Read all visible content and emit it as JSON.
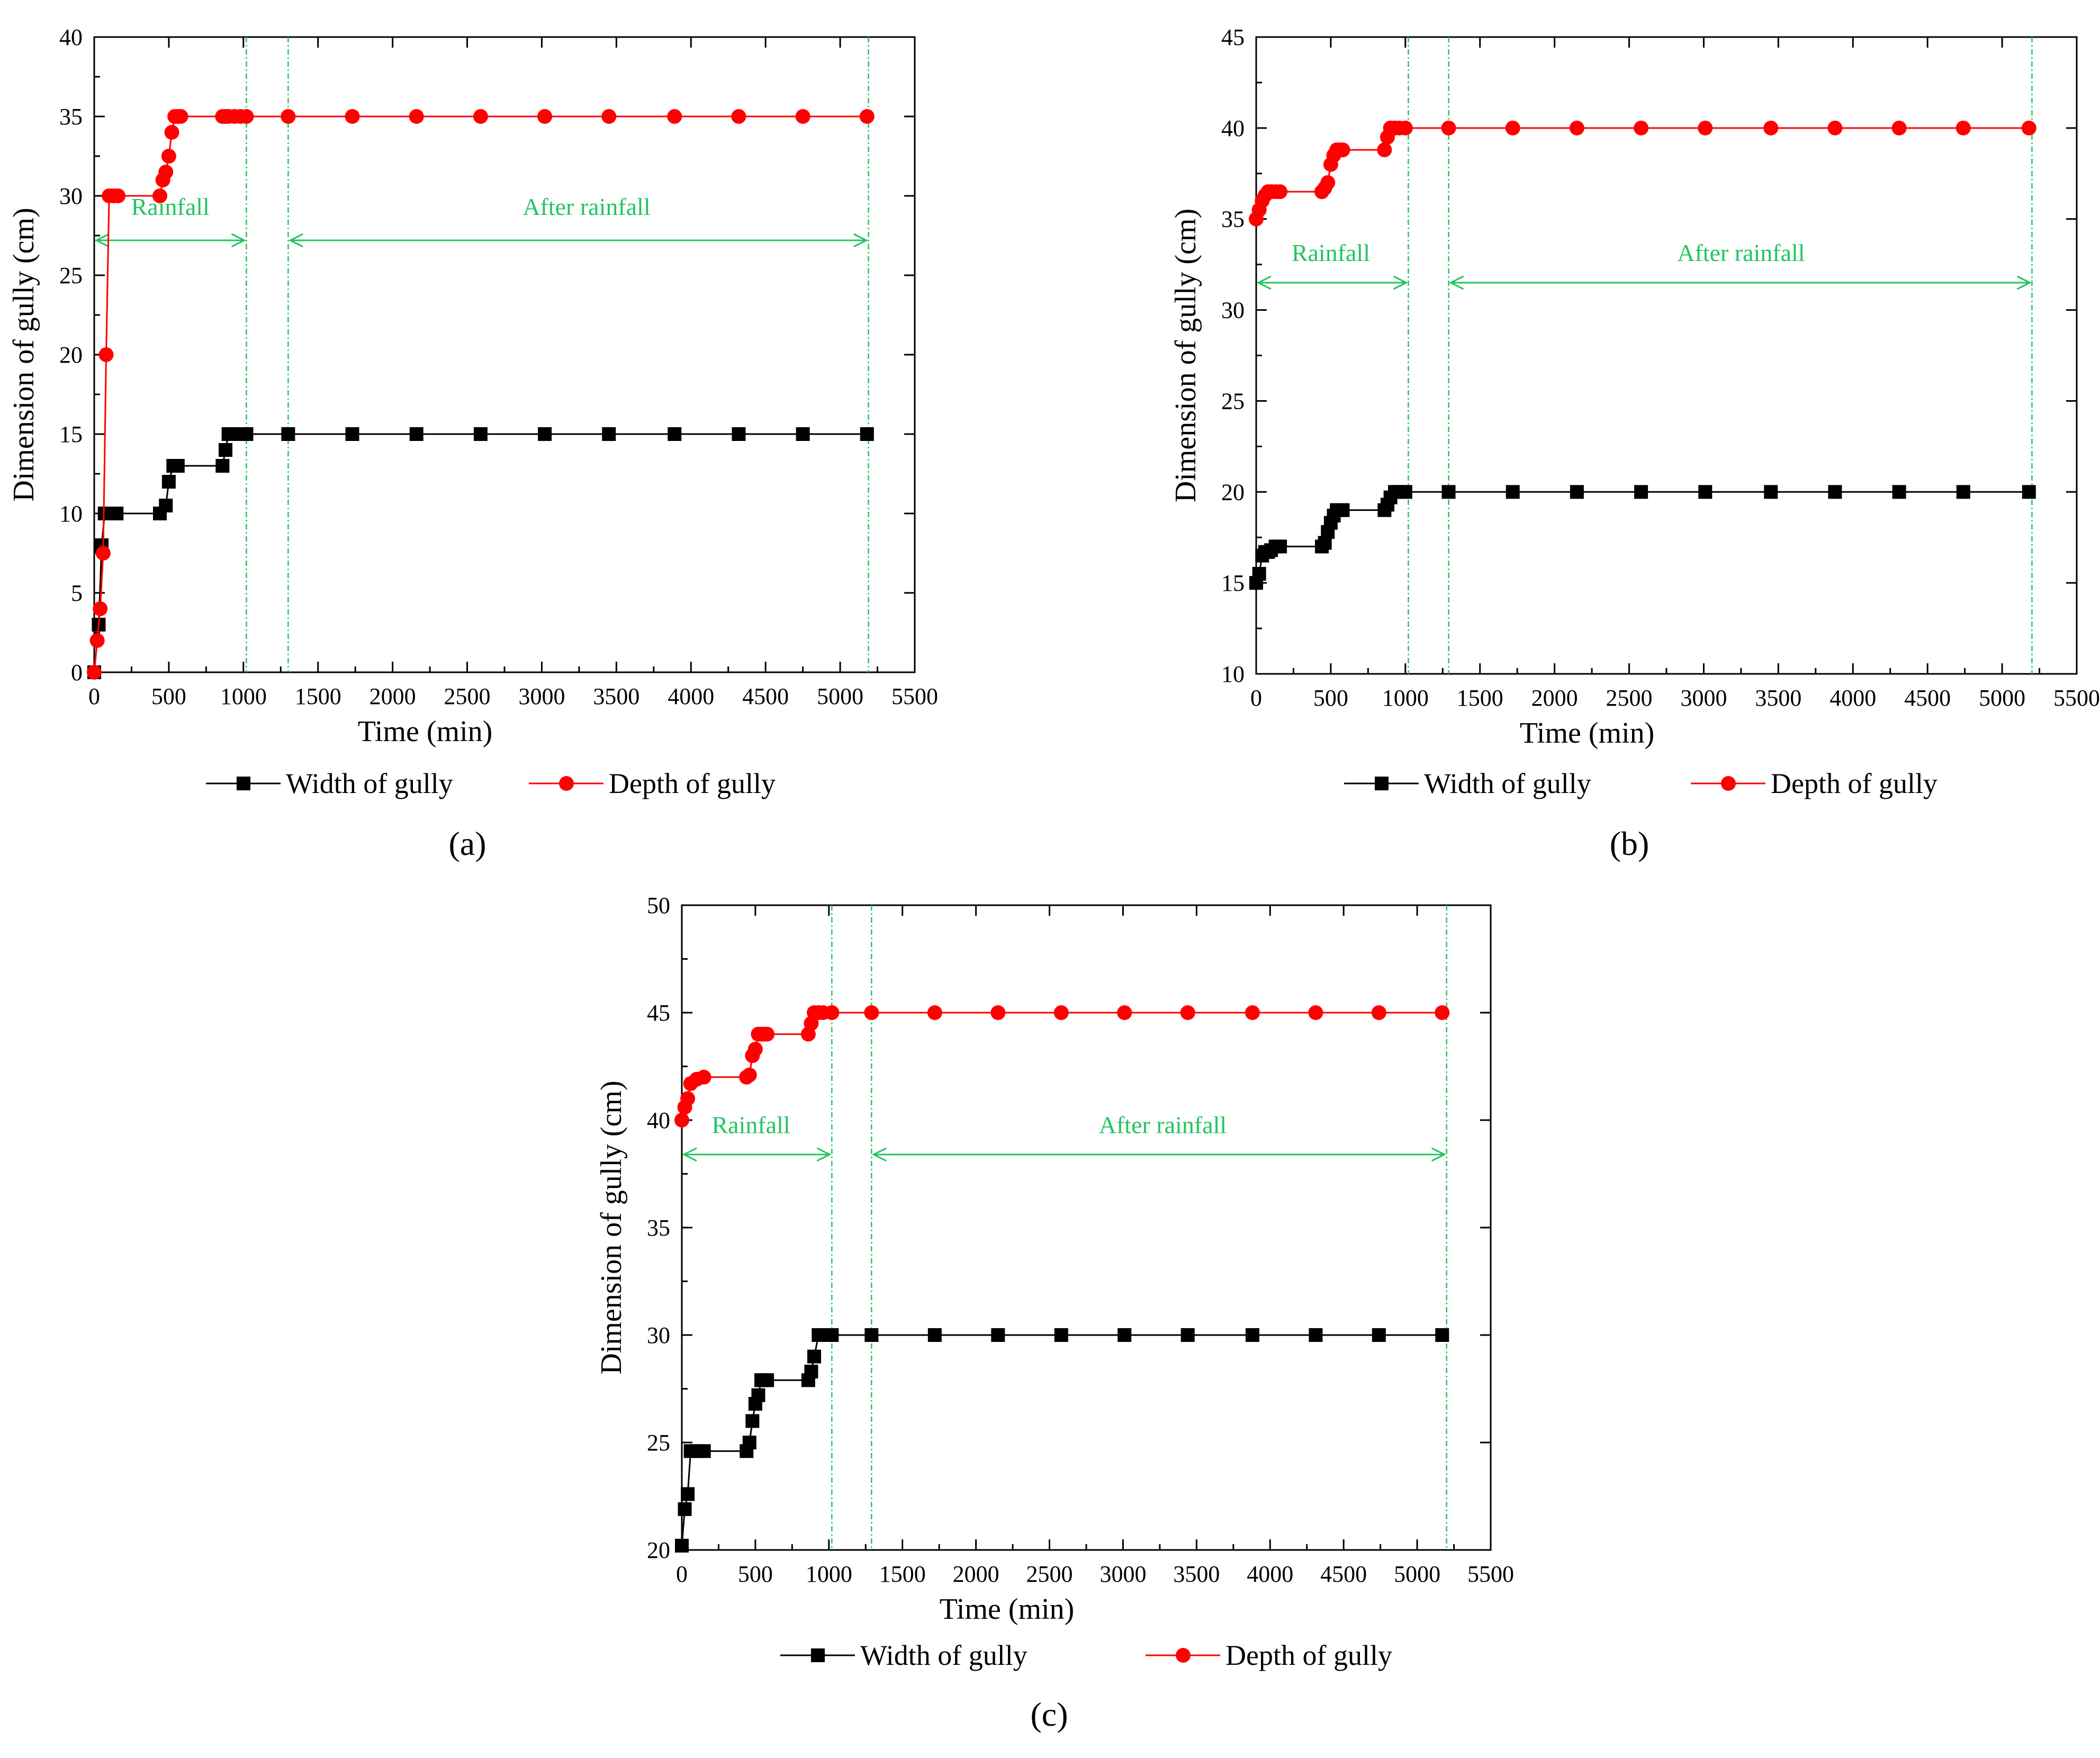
{
  "colors": {
    "width_series": "#000000",
    "depth_series": "#ff0000",
    "annotation": "#22c55e",
    "axis": "#000000"
  },
  "chart_data": [
    {
      "type": "line",
      "panel_label": "(a)",
      "xlabel": "Time (min)",
      "ylabel": "Dimension of gully (cm)",
      "xlim": [
        0,
        5500
      ],
      "ylim": [
        0,
        40
      ],
      "xticks": [
        0,
        500,
        1000,
        1500,
        2000,
        2500,
        3000,
        3500,
        4000,
        4500,
        5000,
        5500
      ],
      "yticks": [
        0,
        5,
        10,
        15,
        20,
        25,
        30,
        35,
        40
      ],
      "grid": false,
      "legend_position": "below",
      "annotations": {
        "vlines": [
          1020,
          1300,
          5190
        ],
        "spans": [
          {
            "label": "Rainfall",
            "from": 0,
            "to": 1020,
            "y": 27.2,
            "label_y": 28.8,
            "label_x": 510
          },
          {
            "label": "After rainfall",
            "from": 1300,
            "to": 5190,
            "y": 27.2,
            "label_y": 28.8,
            "label_x": 3300
          }
        ]
      },
      "series": [
        {
          "name": "Width of gully",
          "marker": "square",
          "x": [
            0,
            30,
            50,
            70,
            100,
            150,
            440,
            480,
            500,
            530,
            560,
            860,
            880,
            900,
            960,
            1020,
            1300,
            1730,
            2160,
            2590,
            3020,
            3450,
            3890,
            4320,
            4750,
            5180
          ],
          "y": [
            0,
            3,
            8,
            10,
            10,
            10,
            10,
            10.5,
            12,
            13,
            13,
            13,
            14,
            15,
            15,
            15,
            15,
            15,
            15,
            15,
            15,
            15,
            15,
            15,
            15,
            15
          ]
        },
        {
          "name": "Depth of gully",
          "marker": "circle",
          "x": [
            0,
            20,
            40,
            60,
            80,
            100,
            130,
            160,
            440,
            460,
            480,
            500,
            520,
            540,
            560,
            580,
            860,
            880,
            900,
            940,
            980,
            1020,
            1300,
            1730,
            2160,
            2590,
            3020,
            3450,
            3890,
            4320,
            4750,
            5180
          ],
          "y": [
            0,
            2,
            4,
            7.5,
            20,
            30,
            30,
            30,
            30,
            31,
            31.5,
            32.5,
            34,
            35,
            35,
            35,
            35,
            35,
            35,
            35,
            35,
            35,
            35,
            35,
            35,
            35,
            35,
            35,
            35,
            35,
            35,
            35
          ]
        }
      ]
    },
    {
      "type": "line",
      "panel_label": "(b)",
      "xlabel": "Time (min)",
      "ylabel": "Dimension of gully (cm)",
      "xlim": [
        0,
        5500
      ],
      "ylim": [
        10,
        45
      ],
      "xticks": [
        0,
        500,
        1000,
        1500,
        2000,
        2500,
        3000,
        3500,
        4000,
        4500,
        5000,
        5500
      ],
      "yticks": [
        10,
        15,
        20,
        25,
        30,
        35,
        40,
        45
      ],
      "grid": false,
      "legend_position": "below",
      "annotations": {
        "vlines": [
          1020,
          1290,
          5200
        ],
        "spans": [
          {
            "label": "Rainfall",
            "from": 0,
            "to": 1020,
            "y": 31.5,
            "label_y": 32.7,
            "label_x": 500
          },
          {
            "label": "After rainfall",
            "from": 1290,
            "to": 5200,
            "y": 31.5,
            "label_y": 32.7,
            "label_x": 3250
          }
        ]
      },
      "series": [
        {
          "name": "Width of gully",
          "marker": "square",
          "x": [
            0,
            20,
            40,
            60,
            80,
            100,
            130,
            160,
            440,
            460,
            480,
            500,
            520,
            540,
            560,
            580,
            860,
            880,
            900,
            930,
            960,
            1000,
            1290,
            1720,
            2150,
            2580,
            3010,
            3450,
            3880,
            4310,
            4740,
            5180
          ],
          "y": [
            15,
            15.5,
            16.5,
            16.7,
            16.7,
            16.8,
            17,
            17,
            17,
            17.2,
            17.8,
            18.3,
            18.7,
            19,
            19,
            19,
            19,
            19.3,
            19.7,
            20,
            20,
            20,
            20,
            20,
            20,
            20,
            20,
            20,
            20,
            20,
            20,
            20
          ]
        },
        {
          "name": "Depth of gully",
          "marker": "circle",
          "x": [
            0,
            20,
            40,
            60,
            80,
            100,
            130,
            160,
            440,
            460,
            480,
            500,
            520,
            540,
            560,
            580,
            860,
            880,
            900,
            930,
            960,
            1000,
            1290,
            1720,
            2150,
            2580,
            3010,
            3450,
            3880,
            4310,
            4740,
            5180
          ],
          "y": [
            35,
            35.5,
            36,
            36.3,
            36.5,
            36.5,
            36.5,
            36.5,
            36.5,
            36.7,
            37,
            38,
            38.5,
            38.8,
            38.8,
            38.8,
            38.8,
            39.5,
            40,
            40,
            40,
            40,
            40,
            40,
            40,
            40,
            40,
            40,
            40,
            40,
            40,
            40
          ]
        }
      ]
    },
    {
      "type": "line",
      "panel_label": "(c)",
      "xlabel": "Time (min)",
      "ylabel": "Dimension of gully (cm)",
      "xlim": [
        0,
        5500
      ],
      "ylim": [
        20,
        50
      ],
      "xticks": [
        0,
        500,
        1000,
        1500,
        2000,
        2500,
        3000,
        3500,
        4000,
        4500,
        5000,
        5500
      ],
      "yticks": [
        20,
        25,
        30,
        35,
        40,
        45,
        50
      ],
      "grid": false,
      "legend_position": "below",
      "annotations": {
        "vlines": [
          1020,
          1290,
          5200
        ],
        "spans": [
          {
            "label": "Rainfall",
            "from": 0,
            "to": 1020,
            "y": 38.4,
            "label_y": 39.4,
            "label_x": 470
          },
          {
            "label": "After rainfall",
            "from": 1290,
            "to": 5200,
            "y": 38.4,
            "label_y": 39.4,
            "label_x": 3270
          }
        ]
      },
      "series": [
        {
          "name": "Width of gully",
          "marker": "square",
          "x": [
            0,
            20,
            40,
            60,
            100,
            150,
            440,
            460,
            480,
            500,
            520,
            540,
            560,
            580,
            860,
            880,
            900,
            930,
            960,
            1020,
            1290,
            1720,
            2150,
            2580,
            3010,
            3440,
            3880,
            4310,
            4740,
            5170
          ],
          "y": [
            20.2,
            21.9,
            22.6,
            24.6,
            24.6,
            24.6,
            24.6,
            25,
            26,
            26.8,
            27.2,
            27.9,
            27.9,
            27.9,
            27.9,
            28.3,
            29,
            30,
            30,
            30,
            30,
            30,
            30,
            30,
            30,
            30,
            30,
            30,
            30,
            30
          ]
        },
        {
          "name": "Depth of gully",
          "marker": "circle",
          "x": [
            0,
            20,
            40,
            60,
            100,
            150,
            440,
            460,
            480,
            500,
            520,
            540,
            560,
            580,
            860,
            880,
            900,
            930,
            960,
            1020,
            1290,
            1720,
            2150,
            2580,
            3010,
            3440,
            3880,
            4310,
            4740,
            5170
          ],
          "y": [
            40,
            40.6,
            41,
            41.7,
            41.9,
            42,
            42,
            42.1,
            43,
            43.3,
            44,
            44,
            44,
            44,
            44,
            44.5,
            45,
            45,
            45,
            45,
            45,
            45,
            45,
            45,
            45,
            45,
            45,
            45,
            45,
            45
          ]
        }
      ]
    }
  ]
}
